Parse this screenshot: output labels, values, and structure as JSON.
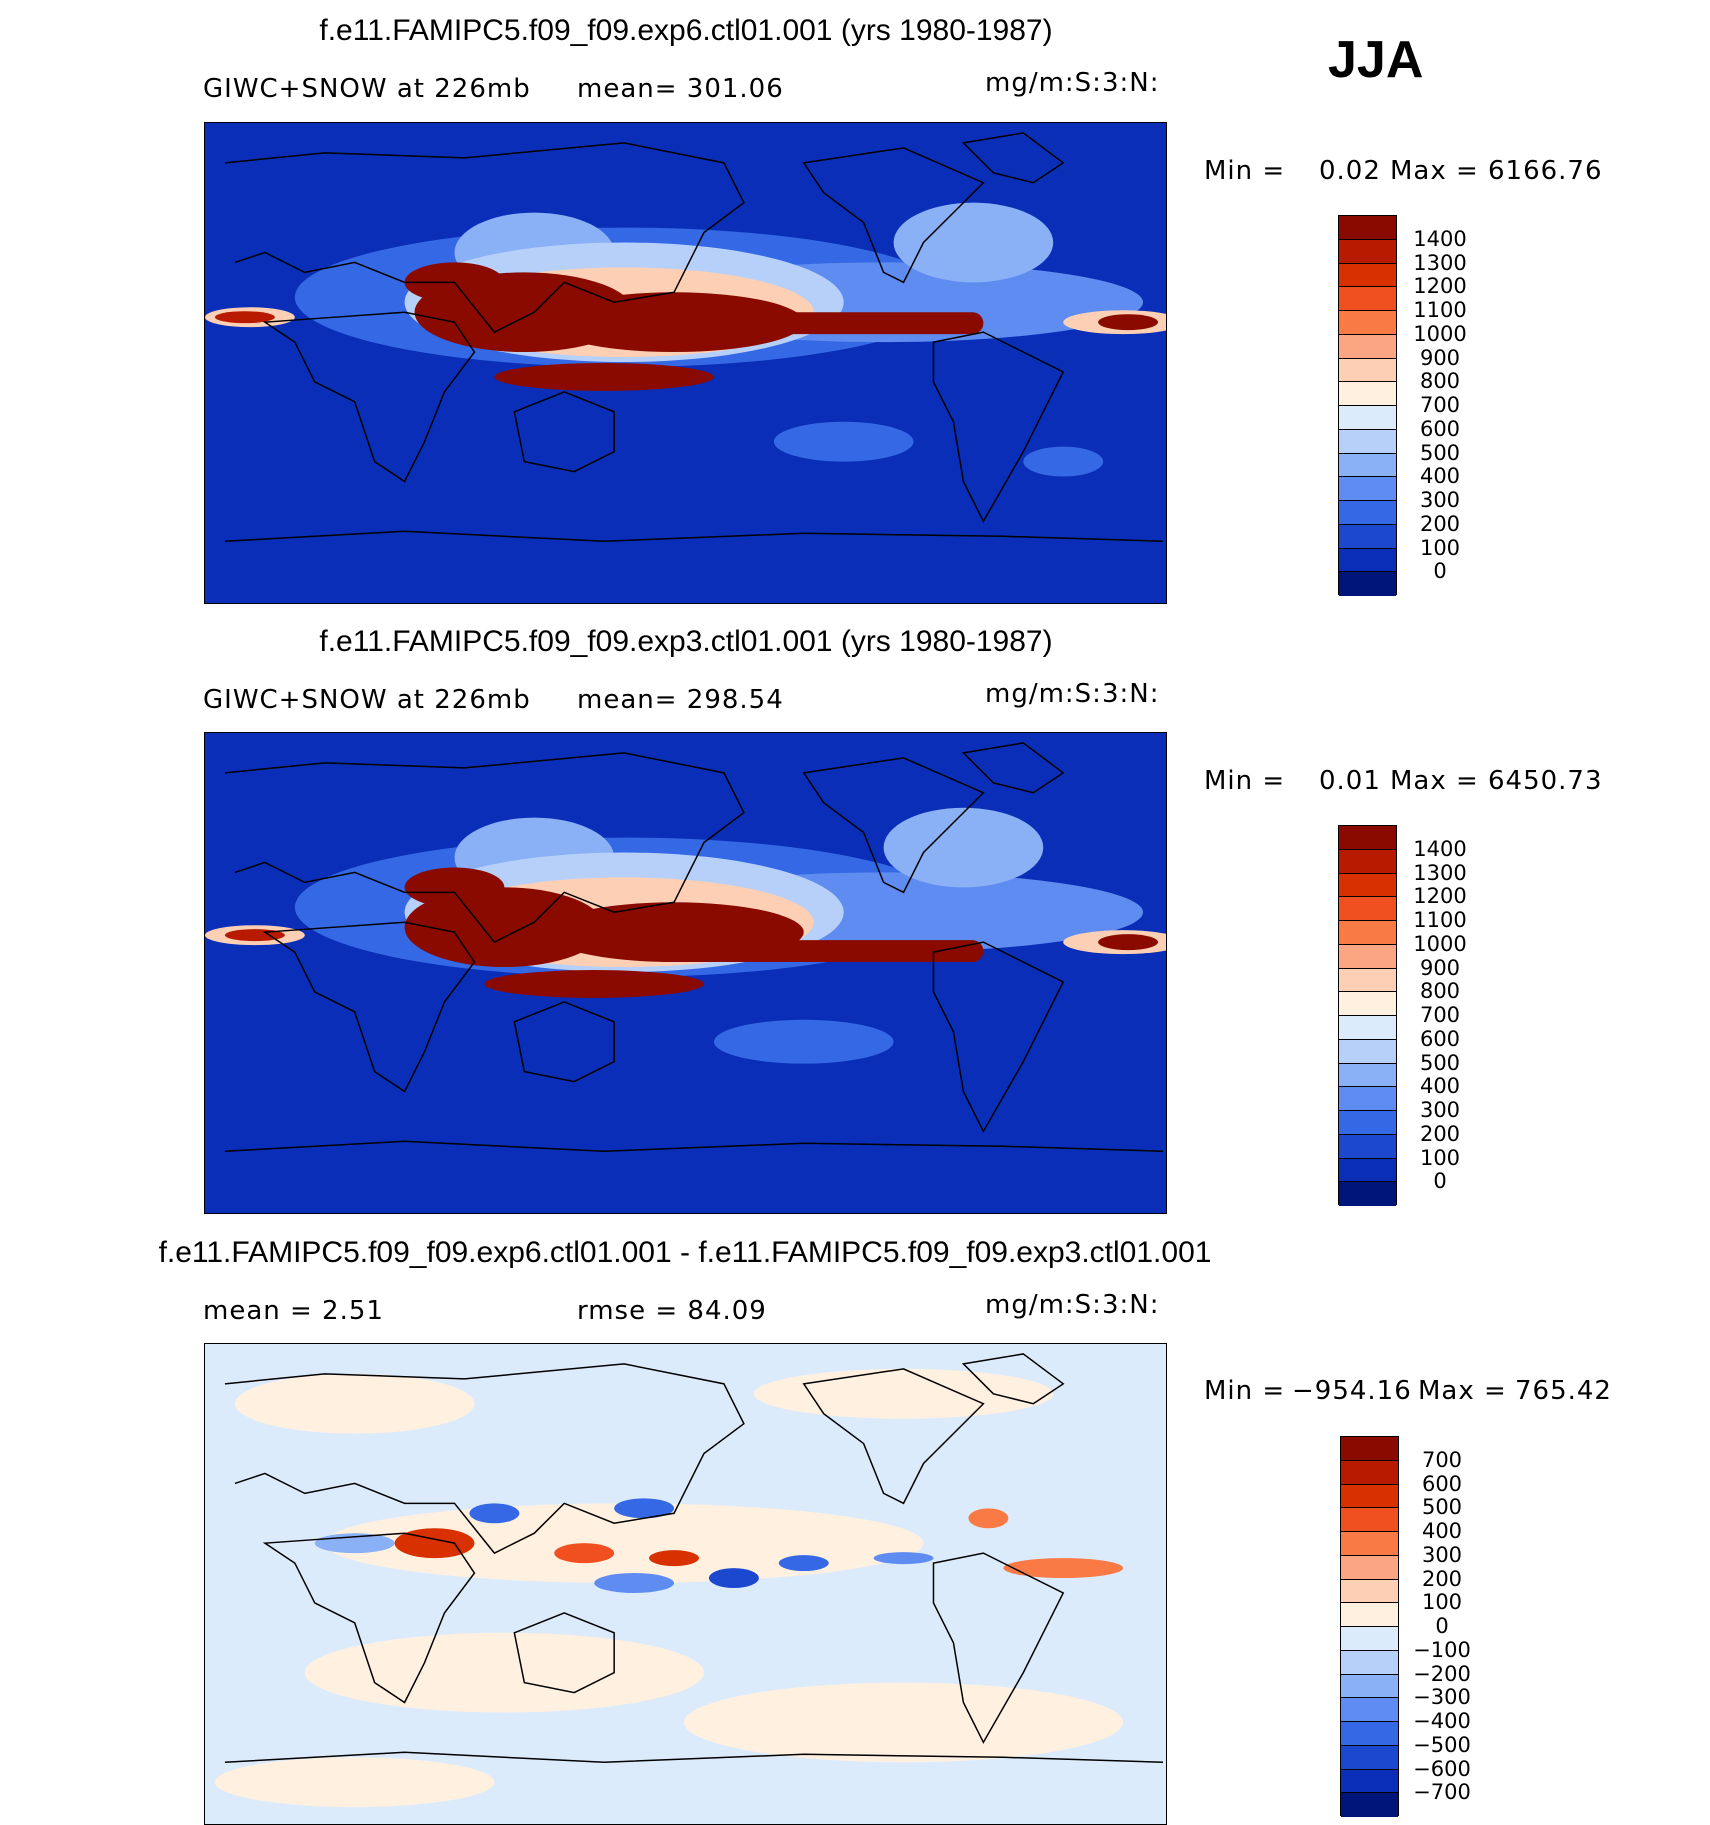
{
  "season": "JJA",
  "panels": [
    {
      "title": "f.e11.FAMIPC5.f09_f09.exp6.ctl01.001 (yrs 1980-1987)",
      "left_label": "GIWC+SNOW at 226mb",
      "stat_label": "mean= 301.06",
      "units": "mg/m:S:3:N:",
      "min_label": "Min =",
      "min_value": "0.02",
      "max_label": "Max =",
      "max_value": "6166.76",
      "colorbar_labels": [
        "1400",
        "1300",
        "1200",
        "1100",
        "1000",
        "900",
        "800",
        "700",
        "600",
        "500",
        "400",
        "300",
        "200",
        "100",
        "0"
      ],
      "colorbar_colors": [
        "#8a0a00",
        "#b81a00",
        "#d93000",
        "#f05020",
        "#fa7a45",
        "#fca582",
        "#fdd0b5",
        "#fff0e0",
        "#dcebfb",
        "#b6d0f9",
        "#8ab0f5",
        "#5f8cf0",
        "#3568e4",
        "#1c47cf",
        "#0a2eb8",
        "#00157a"
      ]
    },
    {
      "title": "f.e11.FAMIPC5.f09_f09.exp3.ctl01.001 (yrs 1980-1987)",
      "left_label": "GIWC+SNOW at 226mb",
      "stat_label": "mean= 298.54",
      "units": "mg/m:S:3:N:",
      "min_label": "Min =",
      "min_value": "0.01",
      "max_label": "Max =",
      "max_value": "6450.73",
      "colorbar_labels": [
        "1400",
        "1300",
        "1200",
        "1100",
        "1000",
        "900",
        "800",
        "700",
        "600",
        "500",
        "400",
        "300",
        "200",
        "100",
        "0"
      ],
      "colorbar_colors": [
        "#8a0a00",
        "#b81a00",
        "#d93000",
        "#f05020",
        "#fa7a45",
        "#fca582",
        "#fdd0b5",
        "#fff0e0",
        "#dcebfb",
        "#b6d0f9",
        "#8ab0f5",
        "#5f8cf0",
        "#3568e4",
        "#1c47cf",
        "#0a2eb8",
        "#00157a"
      ]
    },
    {
      "title": "f.e11.FAMIPC5.f09_f09.exp6.ctl01.001 - f.e11.FAMIPC5.f09_f09.exp3.ctl01.001",
      "left_label": "mean =    2.51",
      "stat_label": "rmse =    84.09",
      "units": "mg/m:S:3:N:",
      "min_label": "Min =",
      "min_value": "−954.16",
      "max_label": "Max =",
      "max_value": "765.42",
      "colorbar_labels": [
        "700",
        "600",
        "500",
        "400",
        "300",
        "200",
        "100",
        "0",
        "−100",
        "−200",
        "−300",
        "−400",
        "−500",
        "−600",
        "−700"
      ],
      "colorbar_colors": [
        "#8a0a00",
        "#b81a00",
        "#d93000",
        "#f05020",
        "#fa7a45",
        "#fca582",
        "#fdd0b5",
        "#fff0e0",
        "#dcebfb",
        "#b6d0f9",
        "#8ab0f5",
        "#5f8cf0",
        "#3568e4",
        "#1c47cf",
        "#0a2eb8",
        "#00157a"
      ]
    }
  ],
  "map_colors": {
    "background_abs": "#0a2eb8",
    "background_diff": "#dcebfb",
    "high": "#8a0a00",
    "warm": "#fdd0b5",
    "cool": "#8ab0f5",
    "coast": "#000000"
  }
}
